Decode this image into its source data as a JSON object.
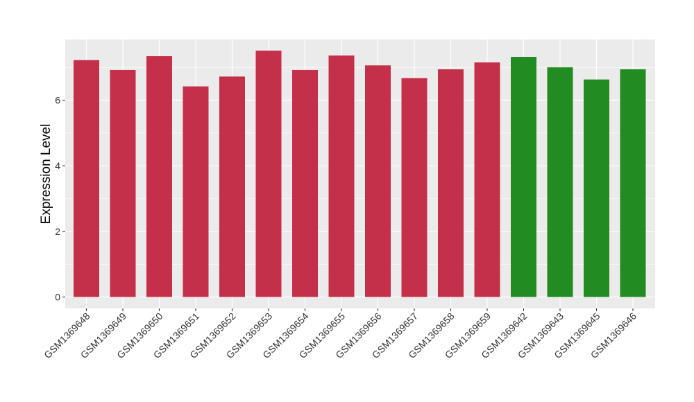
{
  "chart_data": {
    "type": "bar",
    "ylabel": "Expression Level",
    "xlabel": "",
    "ylim": [
      0,
      7.85
    ],
    "yticks": [
      0,
      2,
      4,
      6
    ],
    "grid": true,
    "categories": [
      "GSM1369648",
      "GSM1369649",
      "GSM1369650",
      "GSM1369651",
      "GSM1369652",
      "GSM1369653",
      "GSM1369654",
      "GSM1369655",
      "GSM1369656",
      "GSM1369657",
      "GSM1369658",
      "GSM1369659",
      "GSM1369642",
      "GSM1369643",
      "GSM1369645",
      "GSM1369646"
    ],
    "values": [
      7.22,
      6.92,
      7.34,
      6.42,
      6.72,
      7.51,
      6.92,
      7.36,
      7.06,
      6.67,
      6.94,
      7.15,
      7.32,
      7.0,
      6.63,
      6.94
    ],
    "bar_colors": [
      "#c43049",
      "#c43049",
      "#c43049",
      "#c43049",
      "#c43049",
      "#c43049",
      "#c43049",
      "#c43049",
      "#c43049",
      "#c43049",
      "#c43049",
      "#c43049",
      "#228b22",
      "#228b22",
      "#228b22",
      "#228b22"
    ],
    "panel_background": "#ebebeb",
    "grid_color": "#ffffff"
  }
}
